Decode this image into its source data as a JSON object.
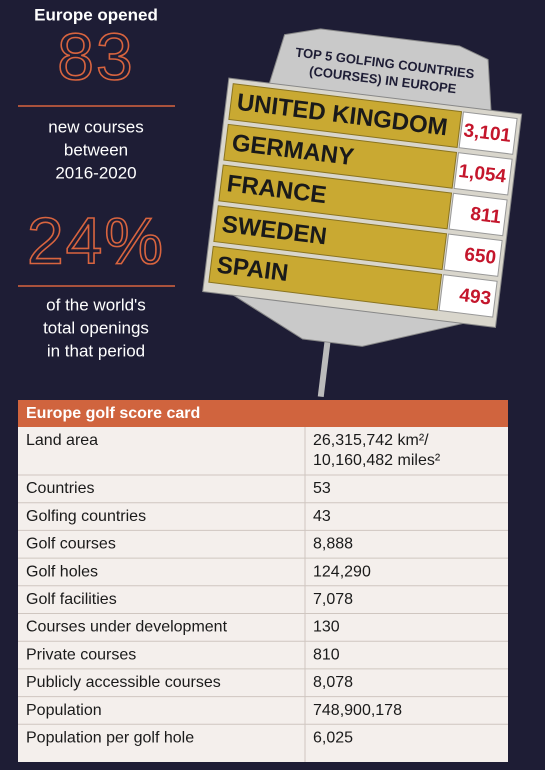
{
  "stats": [
    {
      "intro": "Europe opened",
      "big": "83",
      "lines": [
        "new courses",
        "between",
        "2016-2020"
      ]
    },
    {
      "big": "24%",
      "lines": [
        "of the world's",
        "total openings",
        "in that period"
      ]
    }
  ],
  "leaderboard": {
    "title_lines": [
      "TOP 5 GOLFING COUNTRIES",
      "(COURSES) IN EUROPE"
    ],
    "rows": [
      [
        "UNITED KINGDOM",
        "3,101"
      ],
      [
        "GERMANY",
        "1,054"
      ],
      [
        "FRANCE",
        "811"
      ],
      [
        "SWEDEN",
        "650"
      ],
      [
        "SPAIN",
        "493"
      ]
    ]
  },
  "table": {
    "title": "Europe golf score card",
    "rows": [
      [
        "Land area",
        "26,315,742 km²/",
        "10,160,482 miles²"
      ],
      [
        "Countries",
        "53"
      ],
      [
        "Golfing countries",
        "43"
      ],
      [
        "Golf courses",
        "8,888"
      ],
      [
        "Golf holes",
        "124,290"
      ],
      [
        "Golf facilities",
        "7,078"
      ],
      [
        "Courses under development",
        "130"
      ],
      [
        "Private courses",
        "810"
      ],
      [
        "Publicly accessible courses",
        "8,078"
      ],
      [
        "Population",
        "748,900,178"
      ],
      [
        "Population per golf hole",
        "6,025"
      ]
    ]
  }
}
